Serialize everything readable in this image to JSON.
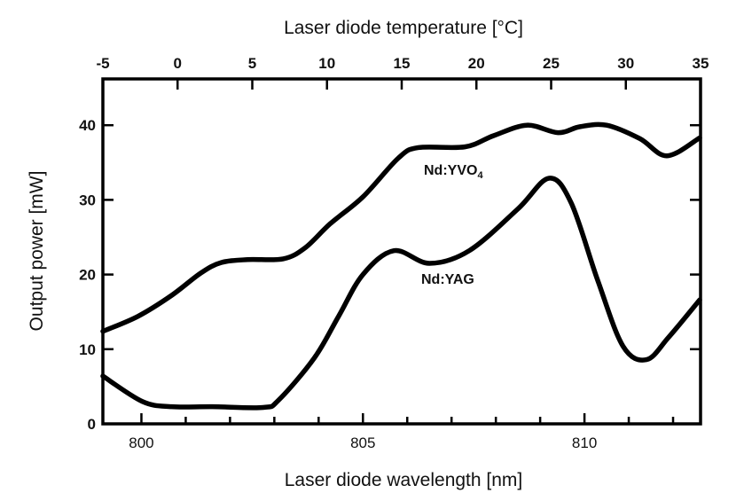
{
  "chart_data": {
    "type": "line",
    "xlabel": "Laser diode wavelength [nm]",
    "x2label": "Laser diode temperature [°C]",
    "ylabel": "Output power [mW]",
    "xlim": [
      799.13,
      812.62
    ],
    "x2lim": [
      -5,
      35
    ],
    "ylim": [
      0,
      46.2
    ],
    "xticks": [
      800,
      805,
      810
    ],
    "xminor_step": 1,
    "x2ticks": [
      -5,
      0,
      5,
      10,
      15,
      20,
      25,
      30,
      35
    ],
    "yticks": [
      0,
      10,
      20,
      30,
      40
    ],
    "grid": false,
    "series": [
      {
        "name": "Nd:YVO",
        "name_sub": "4",
        "x": [
          799.13,
          799.92,
          800.68,
          801.34,
          801.8,
          802.4,
          803.2,
          803.7,
          804.26,
          805.0,
          805.8,
          806.25,
          807.3,
          807.95,
          808.7,
          809.4,
          809.9,
          810.5,
          811.25,
          811.86,
          812.6
        ],
        "y": [
          12.4,
          14.4,
          17.2,
          20.2,
          21.6,
          22.0,
          22.1,
          23.6,
          26.8,
          30.4,
          35.6,
          37.0,
          37.1,
          38.6,
          40.0,
          39.0,
          39.8,
          40.0,
          38.2,
          35.9,
          38.3
        ]
      },
      {
        "name": "Nd:YAG",
        "x": [
          799.13,
          800.02,
          800.68,
          801.6,
          802.75,
          803.1,
          803.9,
          804.45,
          805.0,
          805.7,
          806.5,
          807.4,
          808.5,
          809.2,
          809.7,
          810.3,
          810.87,
          811.4,
          811.9,
          812.6
        ],
        "y": [
          6.4,
          3.0,
          2.3,
          2.3,
          2.2,
          3.2,
          8.8,
          14.4,
          20.0,
          23.2,
          21.5,
          23.2,
          28.8,
          32.9,
          29.6,
          19.2,
          10.4,
          8.6,
          11.6,
          16.6
        ]
      }
    ]
  }
}
